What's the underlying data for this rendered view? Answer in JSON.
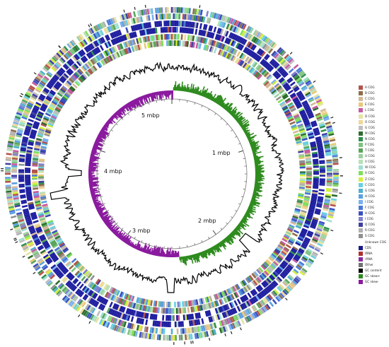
{
  "ruler": {
    "labels": [
      "1 mbp",
      "2 mbp",
      "3 mbp",
      "4 mbp",
      "5 mbp"
    ]
  },
  "legend": {
    "items": [
      {
        "label": "A COG",
        "color": "#b5534a"
      },
      {
        "label": "B COG",
        "color": "#8f6c4a"
      },
      {
        "label": "C COG",
        "color": "#d4b89a"
      },
      {
        "label": "E COG",
        "color": "#e8c87a"
      },
      {
        "label": "L COG",
        "color": "#c75aa0"
      },
      {
        "label": "D COG",
        "color": "#e4e4a4"
      },
      {
        "label": "O COG",
        "color": "#f0d79a"
      },
      {
        "label": "G COG",
        "color": "#bfbfbf"
      },
      {
        "label": "M COG",
        "color": "#2e6b2e"
      },
      {
        "label": "N COG",
        "color": "#2f8f4f"
      },
      {
        "label": "P COG",
        "color": "#7ec27e"
      },
      {
        "label": "T COG",
        "color": "#5aa55a"
      },
      {
        "label": "U COG",
        "color": "#9ad0a0"
      },
      {
        "label": "V COG",
        "color": "#b8e0b8"
      },
      {
        "label": "W COG",
        "color": "#9fe0d0"
      },
      {
        "label": "X COG",
        "color": "#7ee05a"
      },
      {
        "label": "Z COG",
        "color": "#d2f03a"
      },
      {
        "label": "C COG",
        "color": "#6ad0e0"
      },
      {
        "label": "G COG",
        "color": "#4fb0d0"
      },
      {
        "label": "H COG",
        "color": "#5aa0e0"
      },
      {
        "label": "I COG",
        "color": "#7ab0f0"
      },
      {
        "label": "F COG",
        "color": "#4a78d8"
      },
      {
        "label": "H COG",
        "color": "#3a50c0"
      },
      {
        "label": "I COG",
        "color": "#8080d0"
      },
      {
        "label": "Q COG",
        "color": "#4040a0"
      },
      {
        "label": "R COG",
        "color": "#b0b0b0"
      },
      {
        "label": "S COG",
        "color": "#909090"
      },
      {
        "label": "Unknown COG",
        "color": "#ffffff"
      },
      {
        "label": "CDS",
        "color": "#1b1b8a"
      },
      {
        "label": "tRNA",
        "color": "#b03030"
      },
      {
        "label": "rRNA",
        "color": "#8a2aa0"
      },
      {
        "label": "Other",
        "color": "#707070"
      },
      {
        "label": "GC content",
        "color": "#000000"
      },
      {
        "label": "GC skew+",
        "color": "#2e8b1e"
      },
      {
        "label": "GC skew-",
        "color": "#8a1a9e"
      }
    ]
  },
  "colors": {
    "cds": "#1f1fa0",
    "gc_content": "#000000",
    "gc_skew_plus": "#2e8b1e",
    "gc_skew_minus": "#8a1a9e",
    "ruler": "#777777"
  }
}
